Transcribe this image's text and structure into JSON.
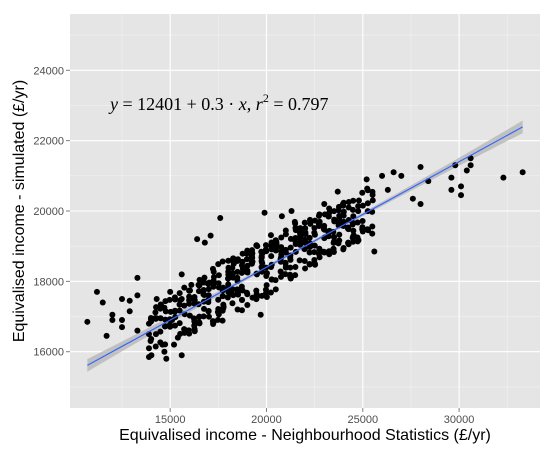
{
  "chart_data": {
    "type": "scatter",
    "title": "",
    "xlabel": "Equivalised income - Neighbourhood Statistics (£/yr)",
    "ylabel": "Equivalised income - simulated (£/yr)",
    "xlim": [
      9800,
      34200
    ],
    "ylim": [
      14400,
      25600
    ],
    "x_ticks": [
      15000,
      20000,
      25000,
      30000
    ],
    "y_ticks": [
      16000,
      18000,
      20000,
      22000,
      24000
    ],
    "x_tick_labels": [
      "15000",
      "20000",
      "25000",
      "30000"
    ],
    "y_tick_labels": [
      "16000",
      "18000",
      "20000",
      "22000",
      "24000"
    ],
    "grid": true,
    "annotation": "y = 12401 + 0.3 · x,  r² = 0.797",
    "annotation_position": [
      12000,
      23000
    ],
    "regression": {
      "intercept": 12401,
      "slope": 0.3,
      "x_range": [
        10700,
        33300
      ],
      "ci_halfwidth_ends": 180,
      "ci_halfwidth_mid": 45
    },
    "points": [
      [
        10700,
        16850
      ],
      [
        11200,
        17700
      ],
      [
        11500,
        17400
      ],
      [
        11700,
        16450
      ],
      [
        12000,
        17050
      ],
      [
        12000,
        16900
      ],
      [
        12500,
        17500
      ],
      [
        12500,
        16900
      ],
      [
        12500,
        16700
      ],
      [
        12900,
        17450
      ],
      [
        12900,
        17150
      ],
      [
        13300,
        17600
      ],
      [
        13300,
        16600
      ],
      [
        13300,
        18100
      ],
      [
        13900,
        16800
      ],
      [
        13900,
        16500
      ],
      [
        13900,
        16100
      ],
      [
        13900,
        15850
      ],
      [
        14300,
        17500
      ],
      [
        14300,
        16950
      ],
      [
        14700,
        17250
      ],
      [
        14600,
        16200
      ],
      [
        14700,
        16000
      ],
      [
        14800,
        15800
      ],
      [
        15000,
        17700
      ],
      [
        15100,
        16900
      ],
      [
        15400,
        16400
      ],
      [
        15200,
        16200
      ],
      [
        15600,
        15900
      ],
      [
        15600,
        17500
      ],
      [
        15600,
        18200
      ],
      [
        16100,
        17900
      ],
      [
        16400,
        19200
      ],
      [
        16300,
        16800
      ],
      [
        16800,
        19100
      ],
      [
        17100,
        19300
      ],
      [
        17600,
        19800
      ],
      [
        18300,
        18500
      ],
      [
        18500,
        17200
      ],
      [
        19700,
        17050
      ],
      [
        19900,
        19950
      ],
      [
        20800,
        19850
      ],
      [
        21300,
        20000
      ],
      [
        21600,
        19500
      ],
      [
        23000,
        20200
      ],
      [
        23700,
        20550
      ],
      [
        24800,
        20300
      ],
      [
        25200,
        20900
      ],
      [
        25600,
        18850
      ],
      [
        26000,
        21000
      ],
      [
        26300,
        20600
      ],
      [
        26600,
        21100
      ],
      [
        27000,
        21000
      ],
      [
        27600,
        20350
      ],
      [
        28000,
        20200
      ],
      [
        28000,
        21250
      ],
      [
        28400,
        20850
      ],
      [
        29600,
        20600
      ],
      [
        29600,
        20950
      ],
      [
        29800,
        21300
      ],
      [
        30100,
        20450
      ],
      [
        30100,
        20700
      ],
      [
        30400,
        21150
      ],
      [
        30600,
        21300
      ],
      [
        30600,
        21500
      ],
      [
        32300,
        20950
      ],
      [
        33300,
        21100
      ]
    ]
  }
}
